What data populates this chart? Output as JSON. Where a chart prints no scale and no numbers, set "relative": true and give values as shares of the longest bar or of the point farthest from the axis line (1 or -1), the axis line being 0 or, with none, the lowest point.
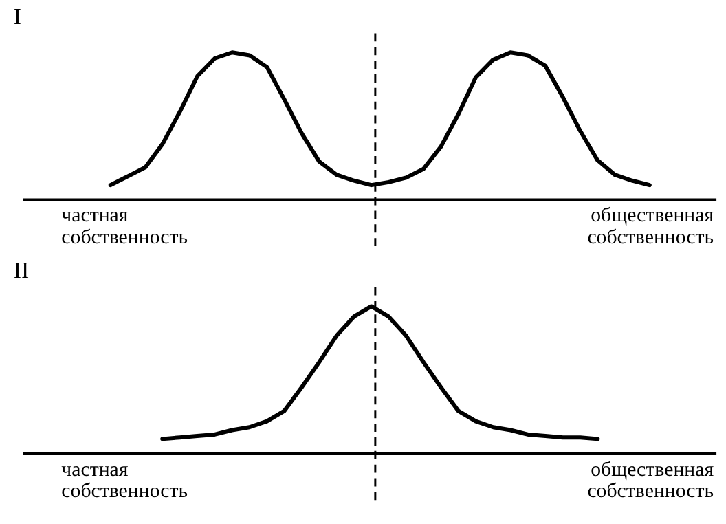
{
  "chart_data": [
    {
      "type": "line",
      "title": "I",
      "relative": true,
      "line_style": "solid",
      "categories": [
        null,
        null,
        null,
        null,
        null,
        null,
        null,
        null,
        null,
        null,
        null,
        null,
        null,
        null,
        null,
        null,
        null,
        null,
        null,
        null,
        null,
        null,
        null,
        null,
        null,
        null,
        null,
        null,
        null,
        null,
        null,
        null
      ],
      "series": [
        {
          "color": "#000000",
          "values": [
            0.1,
            0.16,
            0.22,
            0.38,
            0.6,
            0.84,
            0.96,
            1,
            0.98,
            0.9,
            0.68,
            0.45,
            0.26,
            0.17,
            0.13,
            0.1,
            0.12,
            0.15,
            0.21,
            0.36,
            0.58,
            0.83,
            0.95,
            1,
            0.98,
            0.91,
            0.7,
            0.47,
            0.27,
            0.17,
            0.13,
            0.1
          ]
        }
      ],
      "annotations": [
        "частная собственность",
        "общественная собственность"
      ]
    },
    {
      "type": "line",
      "title": "II",
      "relative": true,
      "line_style": "solid",
      "categories": [
        null,
        null,
        null,
        null,
        null,
        null,
        null,
        null,
        null,
        null,
        null,
        null,
        null,
        null,
        null,
        null,
        null,
        null,
        null,
        null,
        null,
        null,
        null,
        null,
        null,
        null
      ],
      "series": [
        {
          "color": "#000000",
          "values": [
            0.1,
            0.11,
            0.12,
            0.13,
            0.16,
            0.18,
            0.22,
            0.29,
            0.45,
            0.62,
            0.8,
            0.93,
            1,
            0.93,
            0.8,
            0.62,
            0.45,
            0.29,
            0.22,
            0.18,
            0.16,
            0.13,
            0.12,
            0.11,
            0.11,
            0.1
          ]
        }
      ],
      "annotations": [
        "частная собственность",
        "общественная собственность"
      ]
    }
  ]
}
